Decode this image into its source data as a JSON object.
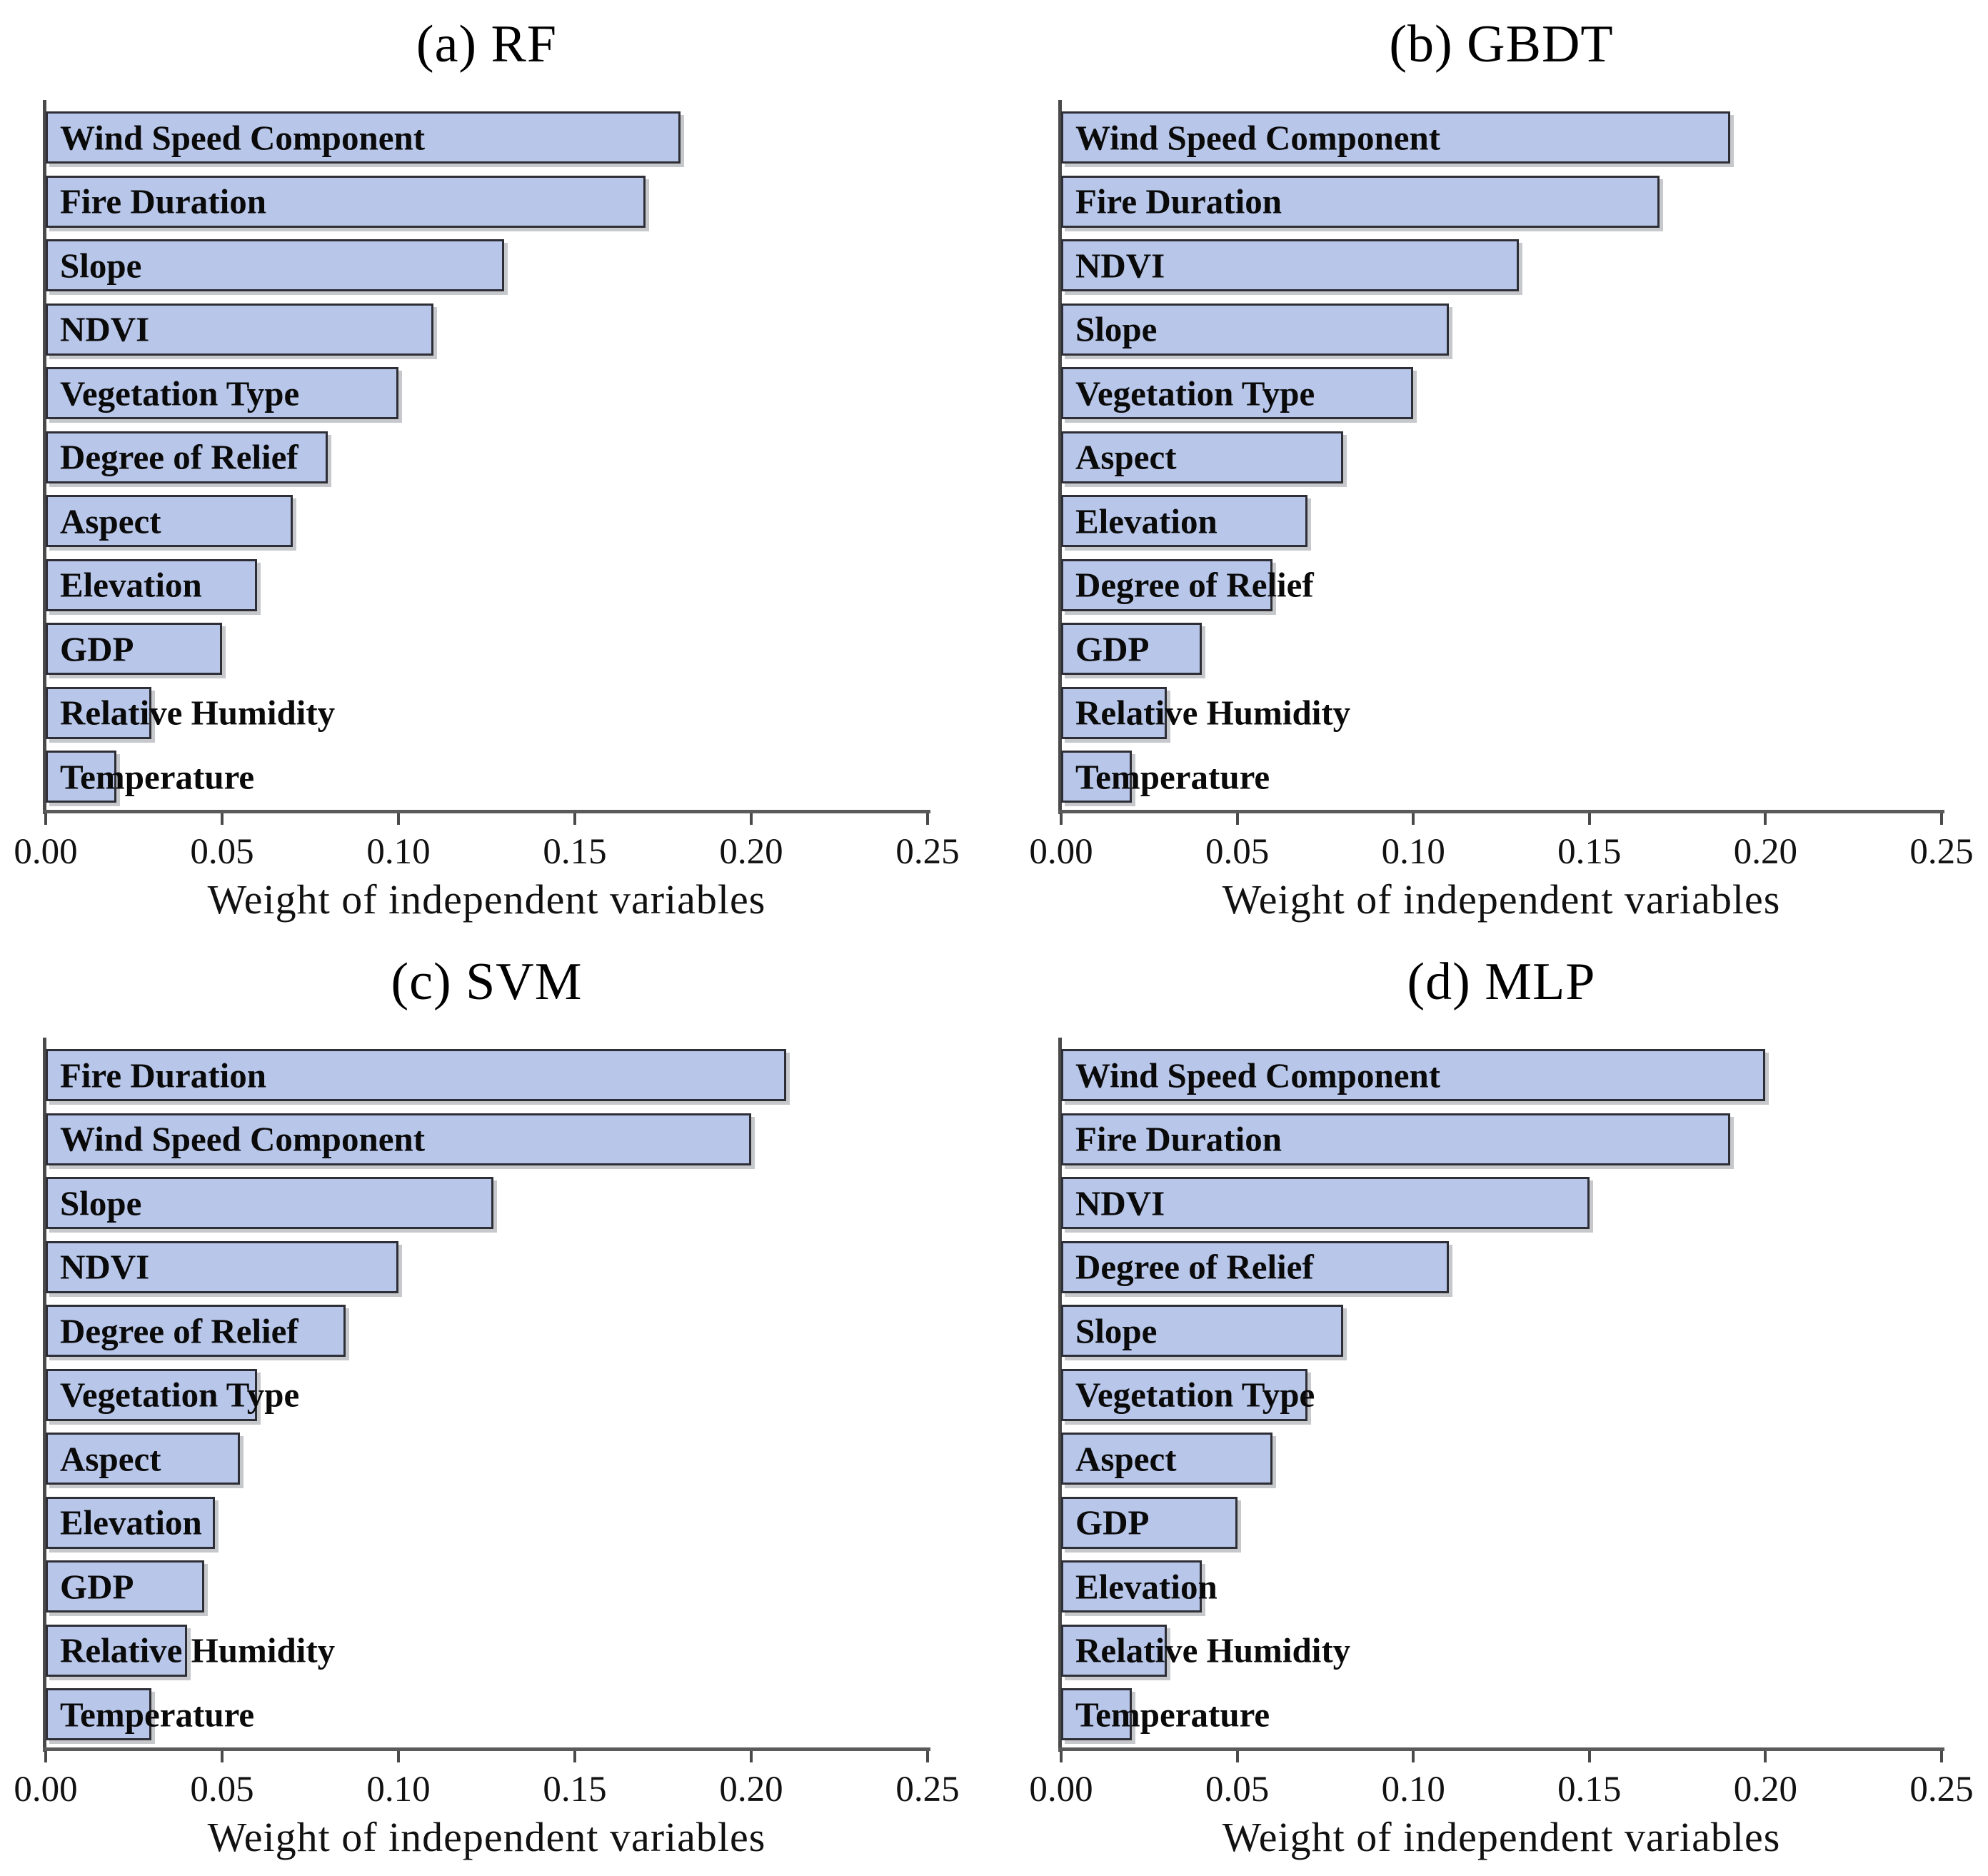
{
  "figure": {
    "x_axis_label": "Weight of independent variables",
    "x_tick_labels": [
      "0.00",
      "0.05",
      "0.10",
      "0.15",
      "0.20",
      "0.25"
    ],
    "colors": {
      "bar_fill": "#b8c6e9",
      "bar_border": "#2e2e36",
      "axis_line": "#5a5a5a",
      "text": "#000000"
    }
  },
  "chart_data": [
    {
      "type": "bar",
      "orientation": "horizontal",
      "title": "(a) RF",
      "xlabel": "Weight of independent variables",
      "xlim": [
        0,
        0.25
      ],
      "x_ticks": [
        0.0,
        0.05,
        0.1,
        0.15,
        0.2,
        0.25
      ],
      "grid": false,
      "legend": false,
      "categories": [
        "Wind Speed Component",
        "Fire Duration",
        "Slope",
        "NDVI",
        "Vegetation Type",
        "Degree of Relief",
        "Aspect",
        "Elevation",
        "GDP",
        "Relative Humidity",
        "Temperature"
      ],
      "values": [
        0.18,
        0.17,
        0.13,
        0.11,
        0.1,
        0.08,
        0.07,
        0.06,
        0.05,
        0.03,
        0.02
      ]
    },
    {
      "type": "bar",
      "orientation": "horizontal",
      "title": "(b) GBDT",
      "xlabel": "Weight of independent variables",
      "xlim": [
        0,
        0.25
      ],
      "x_ticks": [
        0.0,
        0.05,
        0.1,
        0.15,
        0.2,
        0.25
      ],
      "grid": false,
      "legend": false,
      "categories": [
        "Wind Speed Component",
        "Fire Duration",
        "NDVI",
        "Slope",
        "Vegetation Type",
        "Aspect",
        "Elevation",
        "Degree of Relief",
        "GDP",
        "Relative Humidity",
        "Temperature"
      ],
      "values": [
        0.19,
        0.17,
        0.13,
        0.11,
        0.1,
        0.08,
        0.07,
        0.06,
        0.04,
        0.03,
        0.02
      ]
    },
    {
      "type": "bar",
      "orientation": "horizontal",
      "title": "(c) SVM",
      "xlabel": "Weight of independent variables",
      "xlim": [
        0,
        0.25
      ],
      "x_ticks": [
        0.0,
        0.05,
        0.1,
        0.15,
        0.2,
        0.25
      ],
      "grid": false,
      "legend": false,
      "categories": [
        "Fire Duration",
        "Wind Speed Component",
        "Slope",
        "NDVI",
        "Degree of Relief",
        "Vegetation Type",
        "Aspect",
        "Elevation",
        "GDP",
        "Relative Humidity",
        "Temperature"
      ],
      "values": [
        0.21,
        0.2,
        0.127,
        0.1,
        0.085,
        0.06,
        0.055,
        0.048,
        0.045,
        0.04,
        0.03
      ]
    },
    {
      "type": "bar",
      "orientation": "horizontal",
      "title": "(d) MLP",
      "xlabel": "Weight of independent variables",
      "xlim": [
        0,
        0.25
      ],
      "x_ticks": [
        0.0,
        0.05,
        0.1,
        0.15,
        0.2,
        0.25
      ],
      "grid": false,
      "legend": false,
      "categories": [
        "Wind Speed Component",
        "Fire Duration",
        "NDVI",
        "Degree of Relief",
        "Slope",
        "Vegetation Type",
        "Aspect",
        "GDP",
        "Elevation",
        "Relative Humidity",
        "Temperature"
      ],
      "values": [
        0.2,
        0.19,
        0.15,
        0.11,
        0.08,
        0.07,
        0.06,
        0.05,
        0.04,
        0.03,
        0.02
      ]
    }
  ]
}
